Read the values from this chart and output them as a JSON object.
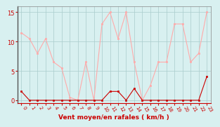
{
  "x": [
    0,
    1,
    2,
    3,
    4,
    5,
    6,
    7,
    8,
    9,
    10,
    11,
    12,
    13,
    14,
    15,
    16,
    17,
    18,
    19,
    20,
    21,
    22,
    23
  ],
  "moyen": [
    1.5,
    0,
    0,
    0,
    0,
    0,
    0,
    0,
    0,
    0,
    0,
    1.5,
    1.5,
    0,
    2,
    0,
    0,
    0,
    0,
    0,
    0,
    0,
    0,
    4
  ],
  "rafales": [
    11.5,
    10.5,
    8,
    10.5,
    6.5,
    5.5,
    0.5,
    0,
    6.5,
    0,
    13,
    15,
    10.5,
    15,
    6.5,
    0,
    2.5,
    6.5,
    6.5,
    13,
    13,
    6.5,
    8,
    15
  ],
  "line_color_moyen": "#cc0000",
  "line_color_rafales": "#ffaaaa",
  "bg_color": "#d8f0f0",
  "grid_color": "#aacccc",
  "xlabel": "Vent moyen/en rafales ( km/h )",
  "xlabel_color": "#cc0000",
  "ylabel_ticks": [
    0,
    5,
    10,
    15
  ],
  "tick_color": "#cc0000",
  "ylim": [
    -0.5,
    16
  ],
  "xlim": [
    -0.5,
    23.5
  ]
}
